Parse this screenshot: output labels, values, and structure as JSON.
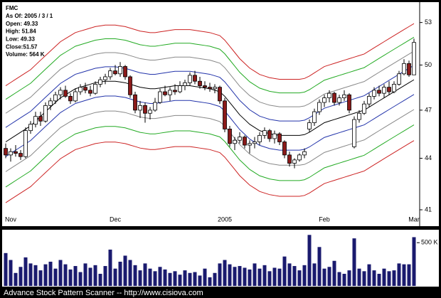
{
  "chart_data": [
    {
      "type": "candlestick",
      "title": "FMC",
      "info_lines": [
        "As Of: 2005 / 3 / 1",
        "Open: 49.33",
        "High: 51.84",
        "Low: 49.33",
        "Close:51.57",
        "Volume: 564 K"
      ],
      "categories": [
        null,
        "Nov",
        null,
        null,
        null,
        null,
        null,
        null,
        null,
        null,
        null,
        null,
        null,
        null,
        null,
        null,
        null,
        null,
        null,
        null,
        null,
        null,
        "Dec",
        null,
        null,
        null,
        null,
        null,
        null,
        null,
        null,
        null,
        null,
        null,
        null,
        null,
        null,
        null,
        null,
        null,
        null,
        null,
        null,
        null,
        "2005",
        null,
        null,
        null,
        null,
        null,
        null,
        null,
        null,
        null,
        null,
        null,
        null,
        null,
        null,
        null,
        null,
        null,
        null,
        null,
        "Feb",
        null,
        null,
        null,
        null,
        null,
        null,
        null,
        null,
        null,
        null,
        null,
        null,
        null,
        null,
        null,
        null,
        null,
        "Mar"
      ],
      "open": [
        44.6,
        44.2,
        44.4,
        44.3,
        44.1,
        45.7,
        46.1,
        46.6,
        46.3,
        47.3,
        47.6,
        48.0,
        48.3,
        47.9,
        47.6,
        48.2,
        48.5,
        48.3,
        48.1,
        48.7,
        49.0,
        49.2,
        49.6,
        49.4,
        49.9,
        49.2,
        48.0,
        47.0,
        47.3,
        46.8,
        47.0,
        47.5,
        48.2,
        48.0,
        48.3,
        48.2,
        48.6,
        48.8,
        49.3,
        48.9,
        48.6,
        48.5,
        48.4,
        48.5,
        47.6,
        45.8,
        44.9,
        45.1,
        45.3,
        44.8,
        44.9,
        45.0,
        45.4,
        45.7,
        45.2,
        45.5,
        45.0,
        44.2,
        43.7,
        43.9,
        44.2,
        45.8,
        46.2,
        46.9,
        47.5,
        47.8,
        48.1,
        47.5,
        47.8,
        48.0,
        44.7,
        46.4,
        46.8,
        47.4,
        47.9,
        48.3,
        48.1,
        48.5,
        48.2,
        48.7,
        49.4,
        50.1,
        49.33
      ],
      "high": [
        44.9,
        44.6,
        44.8,
        44.5,
        45.9,
        46.3,
        46.9,
        46.9,
        47.5,
        47.8,
        48.2,
        48.5,
        48.6,
        48.1,
        48.4,
        48.7,
        48.8,
        48.6,
        48.9,
        49.2,
        49.4,
        49.8,
        50.0,
        50.2,
        50.0,
        49.3,
        48.2,
        47.6,
        47.5,
        47.2,
        47.8,
        48.4,
        48.6,
        48.5,
        48.7,
        48.9,
        49.0,
        49.5,
        49.6,
        49.2,
        48.9,
        48.8,
        48.7,
        48.6,
        47.8,
        46.0,
        45.3,
        45.6,
        45.4,
        45.1,
        45.3,
        45.6,
        45.9,
        45.8,
        45.7,
        45.6,
        45.1,
        44.4,
        44.0,
        44.3,
        44.6,
        46.4,
        47.1,
        47.7,
        48.0,
        48.3,
        48.2,
        48.0,
        48.3,
        48.1,
        46.6,
        47.0,
        47.6,
        48.1,
        48.5,
        48.6,
        48.7,
        48.9,
        48.9,
        49.6,
        50.4,
        50.3,
        51.84
      ],
      "low": [
        44.0,
        43.8,
        44.1,
        43.9,
        44.0,
        45.5,
        45.9,
        46.0,
        46.2,
        47.0,
        47.4,
        47.7,
        47.8,
        47.4,
        47.5,
        48.0,
        48.1,
        47.9,
        48.0,
        48.5,
        48.7,
        49.0,
        49.3,
        49.2,
        49.0,
        47.8,
        46.8,
        46.5,
        46.2,
        46.4,
        46.9,
        47.4,
        47.9,
        47.6,
        48.0,
        48.1,
        48.3,
        48.6,
        48.7,
        48.4,
        48.3,
        48.2,
        48.1,
        47.4,
        45.6,
        44.7,
        44.5,
        44.9,
        44.6,
        44.3,
        44.6,
        44.8,
        45.2,
        45.0,
        44.9,
        44.8,
        44.0,
        43.5,
        43.4,
        43.8,
        44.0,
        45.6,
        46.0,
        46.7,
        47.2,
        47.5,
        47.3,
        47.3,
        47.6,
        46.8,
        44.6,
        46.2,
        46.7,
        47.2,
        47.7,
        47.9,
        47.8,
        48.0,
        48.1,
        48.6,
        49.3,
        49.2,
        49.33
      ],
      "close": [
        44.2,
        44.4,
        44.3,
        44.1,
        45.7,
        46.1,
        46.6,
        46.3,
        47.3,
        47.6,
        48.0,
        48.3,
        47.9,
        47.6,
        48.2,
        48.5,
        48.3,
        48.1,
        48.7,
        49.0,
        49.2,
        49.6,
        49.4,
        49.9,
        49.2,
        48.0,
        47.0,
        47.3,
        46.8,
        47.0,
        47.5,
        48.2,
        48.0,
        48.3,
        48.2,
        48.6,
        48.8,
        49.3,
        48.9,
        48.6,
        48.5,
        48.4,
        48.5,
        47.6,
        45.8,
        44.9,
        45.1,
        45.3,
        44.8,
        44.9,
        45.0,
        45.4,
        45.7,
        45.2,
        45.5,
        45.0,
        44.2,
        43.7,
        43.9,
        44.2,
        44.4,
        46.2,
        46.9,
        47.5,
        47.8,
        48.1,
        47.5,
        47.8,
        48.0,
        47.0,
        46.4,
        46.8,
        47.4,
        47.9,
        48.3,
        48.1,
        48.5,
        48.2,
        48.7,
        49.4,
        50.1,
        49.33,
        51.57
      ],
      "up_color": "#ffffff",
      "down_color": "#8b1a1a",
      "outline_color": "#000000",
      "log_scale": true,
      "ylim": [
        40.8,
        54.5
      ],
      "yticks": [
        41,
        44,
        47,
        50,
        53
      ],
      "bands": {
        "center": [
          45.0,
          45.2,
          45.4,
          45.6,
          45.8,
          46.0,
          46.3,
          46.6,
          46.9,
          47.2,
          47.5,
          47.8,
          48.0,
          48.2,
          48.4,
          48.5,
          48.6,
          48.7,
          48.8,
          48.85,
          48.9,
          48.9,
          48.9,
          48.85,
          48.8,
          48.7,
          48.6,
          48.5,
          48.45,
          48.4,
          48.4,
          48.45,
          48.5,
          48.55,
          48.6,
          48.6,
          48.6,
          48.6,
          48.55,
          48.5,
          48.45,
          48.4,
          48.3,
          48.2,
          47.9,
          47.5,
          47.1,
          46.7,
          46.4,
          46.1,
          45.9,
          45.7,
          45.6,
          45.5,
          45.45,
          45.4,
          45.4,
          45.4,
          45.4,
          45.4,
          45.45,
          45.6,
          45.8,
          46.0,
          46.2,
          46.3,
          46.4,
          46.5,
          46.6,
          46.7,
          46.8,
          46.9,
          47.0,
          47.2,
          47.4,
          47.6,
          47.8,
          48.0,
          48.2,
          48.4,
          48.6,
          48.8,
          49.0
        ],
        "center_color": "#000000",
        "offsets_pct": [
          8,
          6,
          4,
          2
        ],
        "colors": [
          "#cc2222",
          "#22aa22",
          "#888888",
          "#2233aa"
        ]
      }
    },
    {
      "type": "bar",
      "values": [
        380000,
        300000,
        150000,
        220000,
        330000,
        260000,
        240000,
        180000,
        250000,
        280000,
        200000,
        300000,
        250000,
        190000,
        230000,
        160000,
        260000,
        210000,
        240000,
        140000,
        230000,
        420000,
        200000,
        280000,
        350000,
        300000,
        240000,
        180000,
        260000,
        200000,
        170000,
        220000,
        190000,
        150000,
        170000,
        130000,
        180000,
        150000,
        160000,
        120000,
        200000,
        100000,
        150000,
        260000,
        300000,
        250000,
        220000,
        230000,
        210000,
        190000,
        260000,
        200000,
        240000,
        170000,
        210000,
        200000,
        340000,
        260000,
        230000,
        180000,
        240000,
        590000,
        260000,
        450000,
        200000,
        220000,
        290000,
        160000,
        140000,
        180000,
        550000,
        200000,
        170000,
        250000,
        180000,
        140000,
        200000,
        170000,
        180000,
        260000,
        250000,
        250000,
        564000
      ],
      "color": "#1a1a6e",
      "ylim": [
        0,
        650000
      ],
      "yticks": [
        {
          "value": 500000,
          "label": "500 K"
        }
      ]
    }
  ],
  "footer": "Advance Stock Pattern Scanner -- http://www.cisiova.com"
}
